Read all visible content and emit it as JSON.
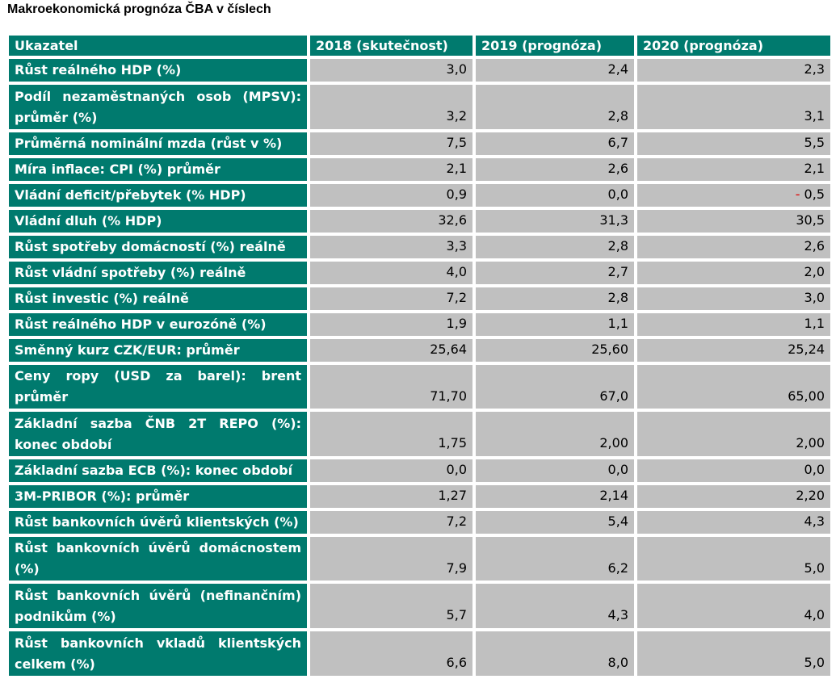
{
  "title": "Makroekonomická prognóza ČBA v číslech",
  "header": {
    "label": "Ukazatel",
    "col1": "2018 (skutečnost)",
    "col2": "2019 (prognóza)",
    "col3": "2020 (prognóza)"
  },
  "rows": [
    {
      "label": "Růst reálného HDP (%)",
      "v1": "3,0",
      "v2": "2,4",
      "v3": "2,3"
    },
    {
      "label": "Podíl nezaměstnaných osob (MPSV): průměr (%)",
      "v1": "3,2",
      "v2": "2,8",
      "v3": "3,1"
    },
    {
      "label": "Průměrná nominální mzda (růst v %)",
      "v1": "7,5",
      "v2": "6,7",
      "v3": "5,5"
    },
    {
      "label": "Míra inflace: CPI (%) průměr",
      "v1": "2,1",
      "v2": "2,6",
      "v3": "2,1"
    },
    {
      "label": "Vládní deficit/přebytek (% HDP)",
      "v1": "0,9",
      "v2": "0,0",
      "v3_sign": "-",
      "v3": " 0,5"
    },
    {
      "label": "Vládní dluh (% HDP)",
      "v1": "32,6",
      "v2": "31,3",
      "v3": "30,5"
    },
    {
      "label": "Růst spotřeby domácností (%) reálně",
      "v1": "3,3",
      "v2": "2,8",
      "v3": "2,6"
    },
    {
      "label": "Růst vládní spotřeby (%) reálně",
      "v1": "4,0",
      "v2": "2,7",
      "v3": "2,0"
    },
    {
      "label": "Růst investic (%) reálně",
      "v1": "7,2",
      "v2": "2,8",
      "v3": "3,0"
    },
    {
      "label": "Růst reálného HDP v eurozóně (%)",
      "v1": "1,9",
      "v2": "1,1",
      "v3": "1,1"
    },
    {
      "label": "Směnný kurz CZK/EUR: průměr",
      "v1": "25,64",
      "v2": "25,60",
      "v3": "25,24"
    },
    {
      "label": "Ceny ropy (USD za barel): brent průměr",
      "v1": "71,70",
      "v2": "67,0",
      "v3": "65,00"
    },
    {
      "label": "Základní sazba ČNB 2T REPO (%): konec období",
      "v1": "1,75",
      "v2": "2,00",
      "v3": "2,00"
    },
    {
      "label": "Základní sazba ECB (%): konec období",
      "v1": "0,0",
      "v2": "0,0",
      "v3": "0,0"
    },
    {
      "label": "3M-PRIBOR (%): průměr",
      "v1": "1,27",
      "v2": "2,14",
      "v3": "2,20"
    },
    {
      "label": "Růst bankovních úvěrů klientských (%)",
      "v1": "7,2",
      "v2": "5,4",
      "v3": "4,3"
    },
    {
      "label": "Růst bankovních úvěrů domácnostem (%)",
      "v1": "7,9",
      "v2": "6,2",
      "v3": "5,0"
    },
    {
      "label": "Růst bankovních úvěrů (nefinančním) podnikům (%)",
      "v1": "5,7",
      "v2": "4,3",
      "v3": "4,0"
    },
    {
      "label": "Růst bankovních vkladů klientských celkem (%)",
      "v1": "6,6",
      "v2": "8,0",
      "v3": "5,0"
    }
  ],
  "colors": {
    "header_bg": "#007a6e",
    "cell_bg": "#c0c0c0",
    "negative_sign": "#e00000"
  }
}
